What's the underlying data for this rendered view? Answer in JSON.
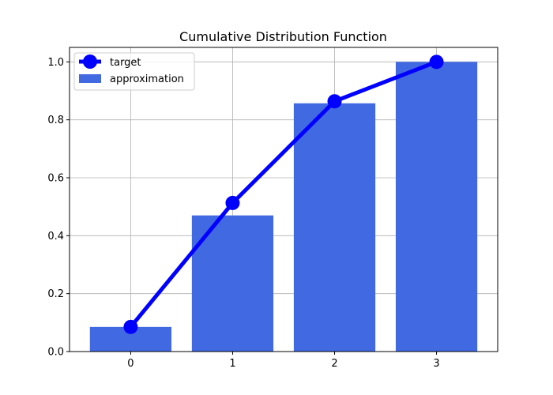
{
  "chart_data": {
    "type": "bar",
    "title": "Cumulative Distribution Function",
    "xlabel": "",
    "ylabel": "",
    "categories": [
      0,
      1,
      2,
      3
    ],
    "xlim": [
      -0.6,
      3.6
    ],
    "ylim": [
      0,
      1.05
    ],
    "xticks": [
      "0",
      "1",
      "2",
      "3"
    ],
    "yticks": [
      "0.0",
      "0.2",
      "0.4",
      "0.6",
      "0.8",
      "1.0"
    ],
    "grid": true,
    "legend_position": "top-left",
    "series": [
      {
        "name": "target",
        "type": "line",
        "marker": "circle",
        "color": "#0000ff",
        "values": [
          0.085,
          0.513,
          0.864,
          1.0
        ]
      },
      {
        "name": "approximation",
        "type": "bar",
        "color": "#4169e1",
        "values": [
          0.085,
          0.47,
          0.857,
          1.0
        ]
      }
    ]
  }
}
